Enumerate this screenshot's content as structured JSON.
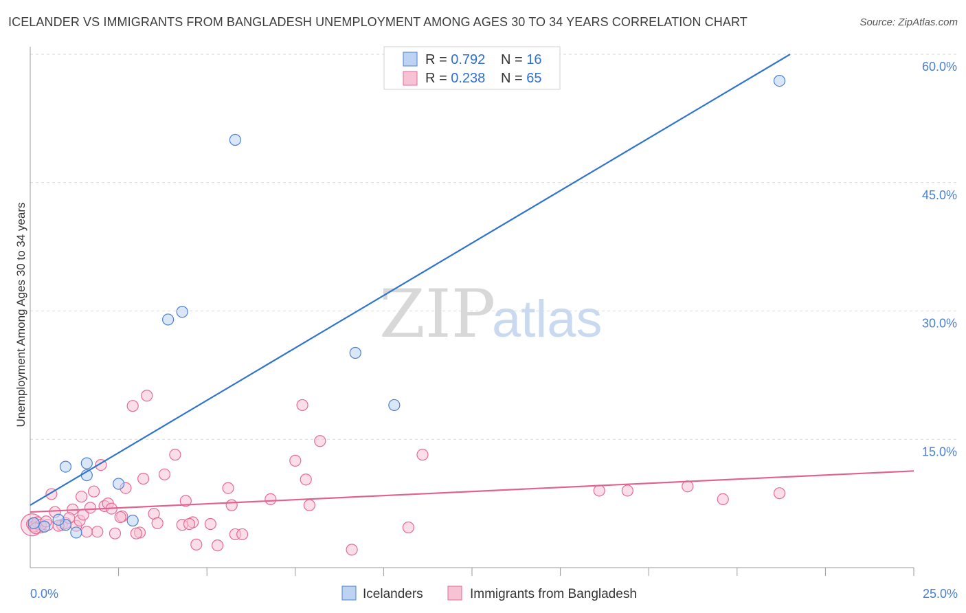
{
  "header": {
    "title": "ICELANDER VS IMMIGRANTS FROM BANGLADESH UNEMPLOYMENT AMONG AGES 30 TO 34 YEARS CORRELATION CHART",
    "source": "Source: ZipAtlas.com"
  },
  "watermark": {
    "zip": "ZIP",
    "atlas": "atlas"
  },
  "legend": {
    "rows": [
      {
        "r_label": "R = ",
        "r_value": "0.792",
        "n_label": "N = ",
        "n_value": "16",
        "color": "#4a80d4",
        "fill": "#bcd3f2"
      },
      {
        "r_label": "R = ",
        "r_value": "0.238",
        "n_label": "N = ",
        "n_value": "65",
        "color": "#e46a98",
        "fill": "#f7c3d4"
      }
    ]
  },
  "bottom_legend": [
    "Icelanders",
    "Immigrants from Bangladesh"
  ],
  "colors": {
    "blue": "#4a80d4",
    "blue_fill": "#bcd3f2",
    "blue_line": "#2f74cc",
    "pink": "#e46a98",
    "pink_fill": "#f7c3d4",
    "pink_line": "#e0638f",
    "grid": "#d9d9d9",
    "axis_text": "#4a7fd0"
  },
  "chart_data": {
    "type": "scatter",
    "title": "ICELANDER VS IMMIGRANTS FROM BANGLADESH UNEMPLOYMENT AMONG AGES 30 TO 34 YEARS CORRELATION CHART",
    "xlabel": "",
    "ylabel": "Unemployment Among Ages 30 to 34 years",
    "xlim": [
      0,
      25
    ],
    "ylim": [
      0,
      60
    ],
    "x_ticks": [
      "0.0%",
      "25.0%"
    ],
    "y_ticks": [
      {
        "value": 15,
        "label": "15.0%"
      },
      {
        "value": 30,
        "label": "30.0%"
      },
      {
        "value": 45,
        "label": "45.0%"
      },
      {
        "value": 60,
        "label": "60.0%"
      }
    ],
    "series": [
      {
        "name": "Icelanders",
        "points": [
          [
            0.1,
            5.2
          ],
          [
            0.4,
            4.8
          ],
          [
            1.0,
            5.0
          ],
          [
            1.0,
            11.8
          ],
          [
            1.6,
            10.8
          ],
          [
            1.6,
            12.2
          ],
          [
            2.5,
            9.8
          ],
          [
            2.9,
            5.5
          ],
          [
            3.9,
            29.0
          ],
          [
            4.3,
            29.9
          ],
          [
            5.8,
            50.0
          ],
          [
            9.2,
            25.1
          ],
          [
            10.3,
            19.0
          ],
          [
            21.2,
            56.9
          ],
          [
            0.8,
            5.6
          ],
          [
            1.3,
            4.1
          ]
        ],
        "trend": {
          "x1": 0.0,
          "y1": 7.3,
          "x2": 21.5,
          "y2": 60.0
        }
      },
      {
        "name": "Immigrants from Bangladesh",
        "points": [
          [
            0.05,
            5.1
          ],
          [
            0.1,
            4.8
          ],
          [
            0.2,
            5.3
          ],
          [
            0.3,
            4.7
          ],
          [
            0.5,
            5.0
          ],
          [
            0.6,
            8.6
          ],
          [
            0.7,
            6.5
          ],
          [
            0.9,
            5.0
          ],
          [
            1.0,
            5.2
          ],
          [
            1.2,
            6.8
          ],
          [
            1.3,
            4.9
          ],
          [
            1.4,
            5.5
          ],
          [
            1.5,
            6.2
          ],
          [
            1.7,
            7.0
          ],
          [
            1.8,
            8.9
          ],
          [
            1.9,
            4.2
          ],
          [
            2.0,
            12.0
          ],
          [
            2.1,
            7.2
          ],
          [
            2.2,
            7.5
          ],
          [
            2.4,
            4.0
          ],
          [
            2.6,
            6.0
          ],
          [
            2.7,
            9.3
          ],
          [
            2.9,
            18.9
          ],
          [
            3.1,
            4.1
          ],
          [
            3.2,
            10.4
          ],
          [
            3.3,
            20.1
          ],
          [
            3.5,
            6.3
          ],
          [
            3.6,
            5.2
          ],
          [
            3.8,
            10.9
          ],
          [
            4.1,
            13.2
          ],
          [
            4.3,
            5.0
          ],
          [
            4.4,
            7.8
          ],
          [
            4.6,
            5.3
          ],
          [
            4.7,
            2.7
          ],
          [
            5.1,
            5.1
          ],
          [
            5.3,
            2.6
          ],
          [
            5.6,
            9.3
          ],
          [
            5.7,
            7.3
          ],
          [
            5.8,
            3.9
          ],
          [
            6.0,
            3.9
          ],
          [
            6.8,
            8.0
          ],
          [
            7.5,
            12.5
          ],
          [
            7.7,
            19.0
          ],
          [
            7.8,
            10.3
          ],
          [
            7.9,
            7.3
          ],
          [
            8.2,
            14.8
          ],
          [
            9.1,
            2.1
          ],
          [
            10.7,
            4.7
          ],
          [
            11.1,
            13.2
          ],
          [
            16.1,
            9.0
          ],
          [
            16.9,
            9.0
          ],
          [
            18.6,
            9.5
          ],
          [
            19.6,
            8.0
          ],
          [
            21.2,
            8.7
          ],
          [
            0.3,
            5.0
          ],
          [
            0.8,
            4.9
          ],
          [
            1.1,
            5.8
          ],
          [
            1.6,
            4.2
          ],
          [
            2.3,
            6.9
          ],
          [
            3.0,
            4.0
          ],
          [
            0.15,
            4.6
          ],
          [
            0.45,
            5.4
          ],
          [
            1.45,
            8.3
          ],
          [
            2.55,
            5.9
          ],
          [
            4.5,
            5.1
          ]
        ],
        "trend": {
          "x1": 0.0,
          "y1": 6.5,
          "x2": 25.0,
          "y2": 11.3
        }
      }
    ]
  }
}
